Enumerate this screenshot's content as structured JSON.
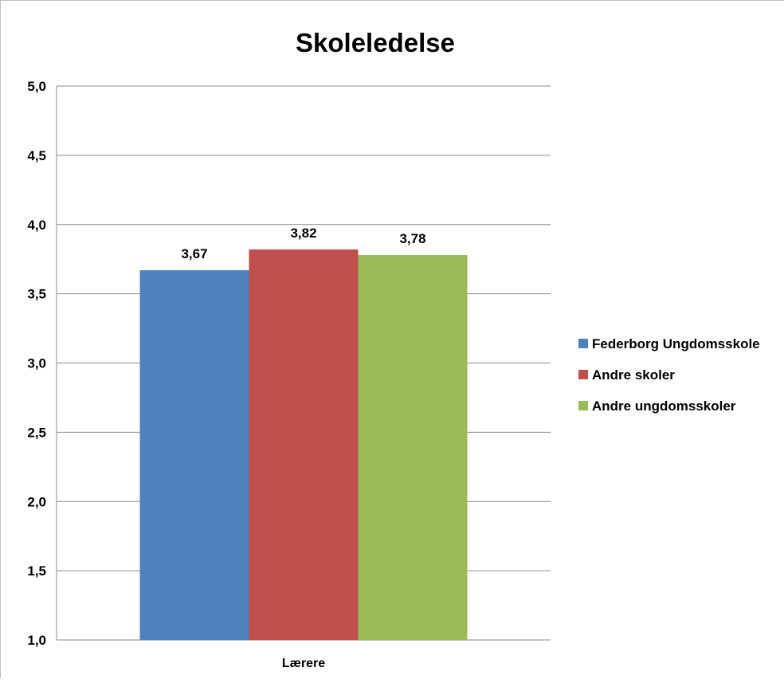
{
  "chart_data": {
    "type": "bar",
    "title": "Skoleledelse",
    "xlabel": "",
    "ylabel": "",
    "categories": [
      "Lærere"
    ],
    "ylim": [
      1.0,
      5.0
    ],
    "yticks": [
      1.0,
      1.5,
      2.0,
      2.5,
      3.0,
      3.5,
      4.0,
      4.5,
      5.0
    ],
    "ytick_labels": [
      "1,0",
      "1,5",
      "2,0",
      "2,5",
      "3,0",
      "3,5",
      "4,0",
      "4,5",
      "5,0"
    ],
    "grid": true,
    "legend_position": "right",
    "series": [
      {
        "name": "Federborg Ungdomsskole",
        "values": [
          3.67
        ],
        "value_labels": [
          "3,67"
        ],
        "color": "#4f81bd"
      },
      {
        "name": "Andre skoler",
        "values": [
          3.82
        ],
        "value_labels": [
          "3,82"
        ],
        "color": "#c0504d"
      },
      {
        "name": "Andre ungdomsskoler",
        "values": [
          3.78
        ],
        "value_labels": [
          "3,78"
        ],
        "color": "#9bbb59"
      }
    ]
  }
}
